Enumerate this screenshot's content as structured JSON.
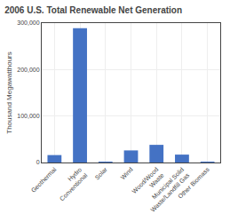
{
  "chart_data": {
    "type": "bar",
    "title": "2006 U.S. Total Renewable Net Generation",
    "ylabel": "Thousand Megawatthours",
    "categories": [
      "Geothermal",
      "Hydro\nConventional",
      "Solar",
      "Wind",
      "Wood/Wood\nWaste",
      "Municipal Solid\nWaste/Landfill Gas",
      "Other Biomass"
    ],
    "values": [
      16000,
      289000,
      508,
      26000,
      38000,
      17000,
      1500
    ],
    "color": "#4472C4",
    "ylim": [
      0,
      300000
    ],
    "yticks": [
      0,
      {
        "value": 100000,
        "label": "100,000"
      },
      {
        "value": 200000,
        "label": "200,000"
      },
      {
        "value": 300000,
        "label": "300,000"
      }
    ],
    "grid": true
  }
}
